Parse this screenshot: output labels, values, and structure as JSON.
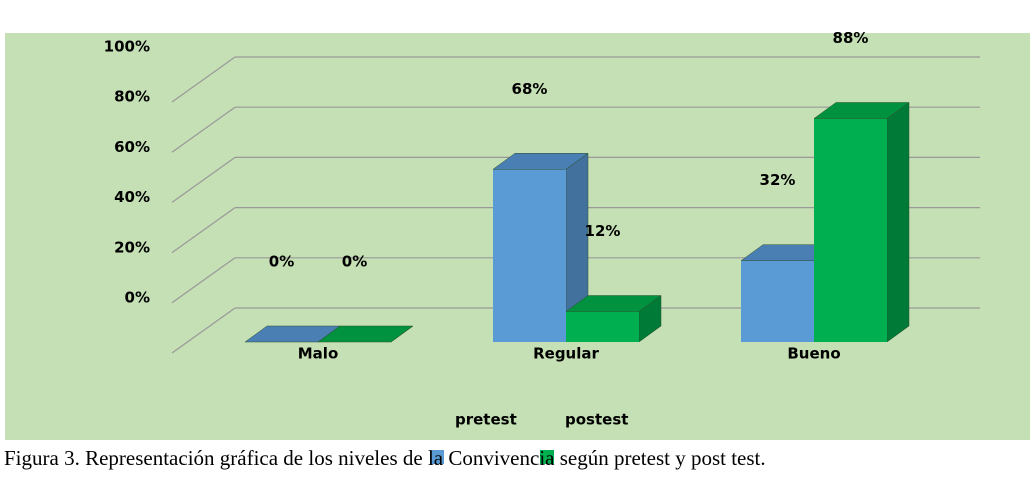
{
  "chart_data": {
    "type": "bar3d",
    "categories": [
      "Malo",
      "Regular",
      "Bueno"
    ],
    "series": [
      {
        "name": "pretest",
        "color": "#5b9bd5",
        "values": [
          0,
          68,
          32
        ],
        "value_labels": [
          "0%",
          "68%",
          "32%"
        ]
      },
      {
        "name": "postest",
        "color": "#00b050",
        "values": [
          0,
          12,
          88
        ],
        "value_labels": [
          "0%",
          "12%",
          "88%"
        ]
      }
    ],
    "ylim": [
      0,
      100
    ],
    "yticks": [
      {
        "value": 0,
        "label": "0%"
      },
      {
        "value": 20,
        "label": "20%"
      },
      {
        "value": 40,
        "label": "40%"
      },
      {
        "value": 60,
        "label": "60%"
      },
      {
        "value": 80,
        "label": "80%"
      },
      {
        "value": 100,
        "label": "100%"
      }
    ],
    "grid": true,
    "legend": "bottom",
    "caption": "Figura 3. Representación gráfica de los niveles de la Convivencia según pretest y post test."
  }
}
